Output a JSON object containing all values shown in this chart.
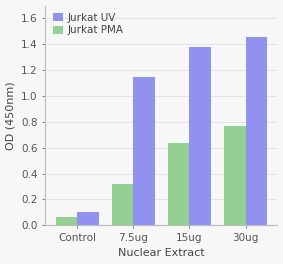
{
  "categories": [
    "Control",
    "7.5ug",
    "15ug",
    "30ug"
  ],
  "series": [
    {
      "label": "Jurkat PMA",
      "values": [
        0.065,
        0.32,
        0.64,
        0.77
      ],
      "color": "#7ec87e"
    },
    {
      "label": "Jurkat UV",
      "values": [
        0.1,
        1.15,
        1.38,
        1.46
      ],
      "color": "#7b7bef"
    }
  ],
  "xlabel": "Nuclear Extract",
  "ylabel": "OD (450nm)",
  "ylim": [
    0.0,
    1.7
  ],
  "yticks": [
    0.0,
    0.2,
    0.4,
    0.6,
    0.8,
    1.0,
    1.2,
    1.4,
    1.6
  ],
  "bar_width": 0.38,
  "background_color": "#f7f7f7",
  "legend_order": [
    "Jurkat UV",
    "Jurkat PMA"
  ],
  "legend_loc": "upper left",
  "label_fontsize": 8,
  "tick_fontsize": 7.5
}
